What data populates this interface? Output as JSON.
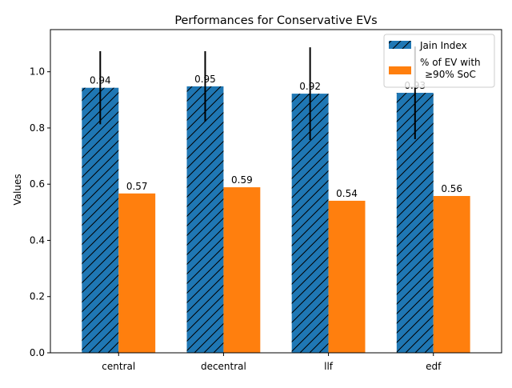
{
  "chart_data": {
    "type": "bar",
    "title": "Performances for Conservative EVs",
    "xlabel": "",
    "ylabel": "Values",
    "ylim": [
      0,
      1.15
    ],
    "yticks": [
      0.0,
      0.2,
      0.4,
      0.6,
      0.8,
      1.0
    ],
    "ytick_labels": [
      "0.0",
      "0.2",
      "0.4",
      "0.6",
      "0.8",
      "1.0"
    ],
    "categories": [
      "central",
      "decentral",
      "llf",
      "edf"
    ],
    "grid": false,
    "legend_position": "top-right",
    "series": [
      {
        "name": "Jain Index",
        "legend_label": "Jain Index",
        "color": "#1f77b4",
        "hatch": "diagonal",
        "values": [
          0.943,
          0.948,
          0.922,
          0.925
        ],
        "labels": [
          "0.94",
          "0.95",
          "0.92",
          "0.93"
        ],
        "error": [
          0.13,
          0.125,
          0.165,
          0.165
        ]
      },
      {
        "name": "% of EV with ≥90% SoC",
        "legend_label_lines": [
          "% of EV with",
          "≥90% SoC"
        ],
        "color": "#ff7f0e",
        "hatch": "none",
        "values": [
          0.567,
          0.589,
          0.541,
          0.558
        ],
        "labels": [
          "0.57",
          "0.59",
          "0.54",
          "0.56"
        ]
      }
    ]
  }
}
